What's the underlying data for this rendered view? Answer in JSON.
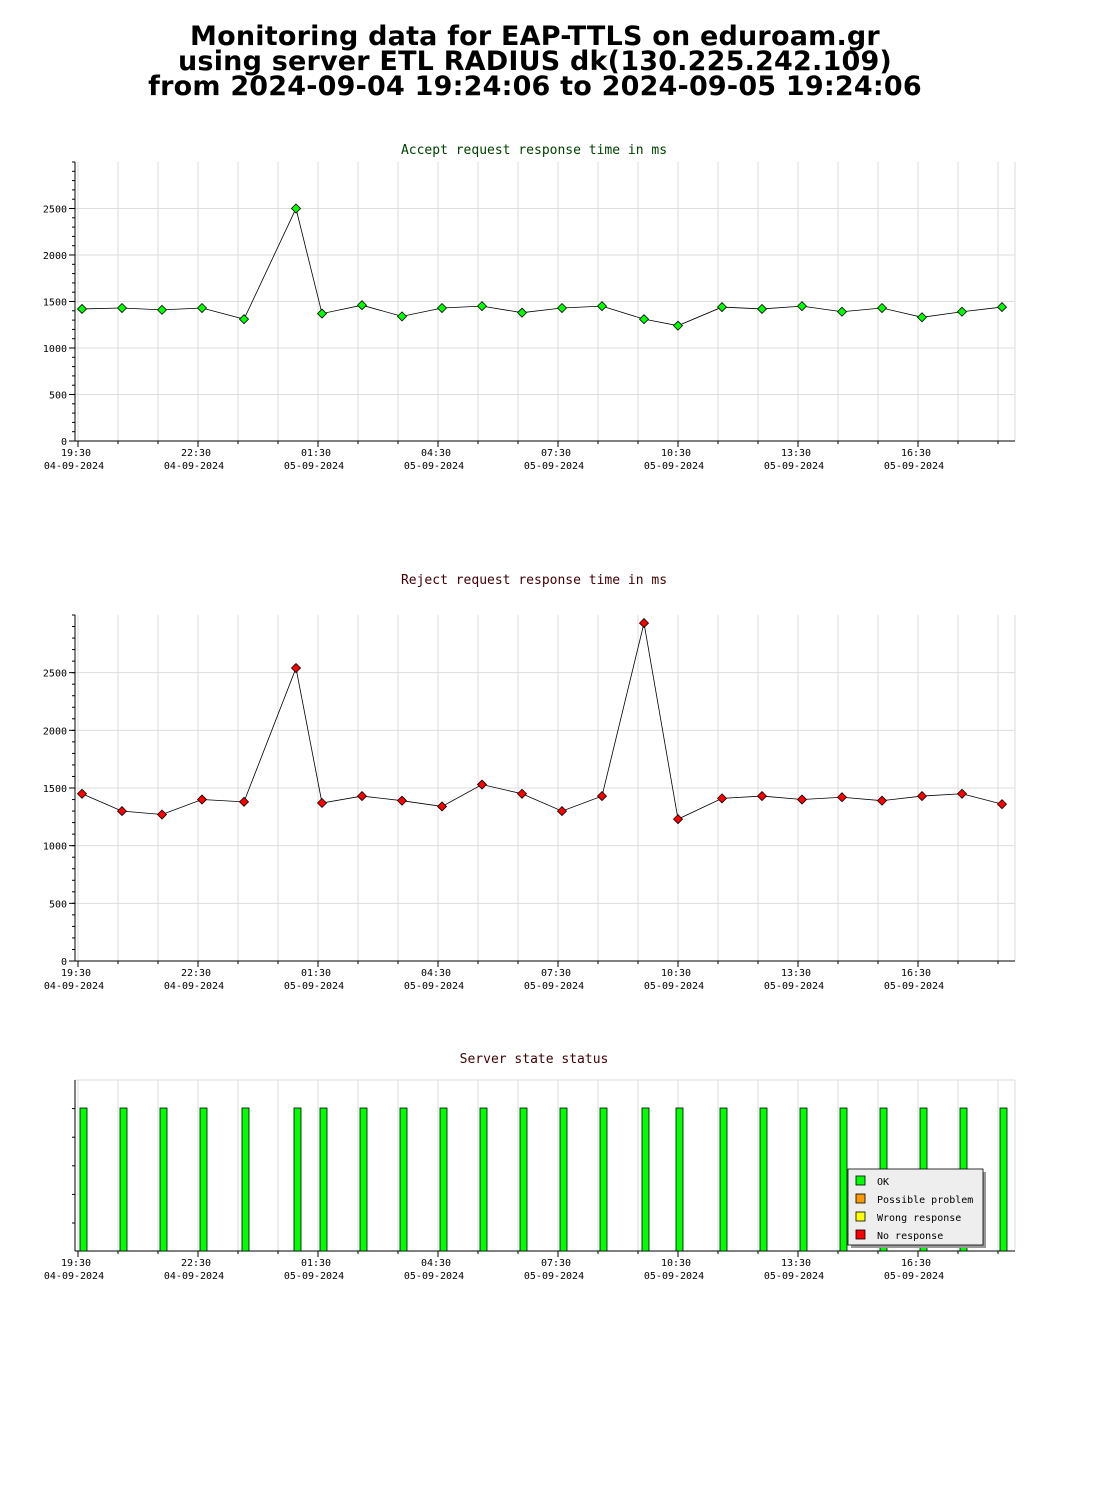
{
  "title": {
    "line1": "Monitoring data for EAP-TTLS on eduroam.gr",
    "line2": "using server ETL RADIUS dk(130.225.242.109)",
    "line3": "from 2024-09-04 19:24:06 to 2024-09-05 19:24:06"
  },
  "colors": {
    "accept_series": "#00ff00",
    "reject_series": "#ff0000",
    "accept_title": "#004000",
    "reject_title": "#400000",
    "status_title": "#400000",
    "grid": "#dddddd"
  },
  "x_axis_ticks": [
    {
      "time": "19:30",
      "date": "04-09-2024"
    },
    {
      "time": "22:30",
      "date": "04-09-2024"
    },
    {
      "time": "01:30",
      "date": "05-09-2024"
    },
    {
      "time": "04:30",
      "date": "05-09-2024"
    },
    {
      "time": "07:30",
      "date": "05-09-2024"
    },
    {
      "time": "10:30",
      "date": "05-09-2024"
    },
    {
      "time": "13:30",
      "date": "05-09-2024"
    },
    {
      "time": "16:30",
      "date": "05-09-2024"
    }
  ],
  "chart_data": [
    {
      "type": "line",
      "title": "Accept request response time in ms",
      "xlabel": "",
      "ylabel": "",
      "ylim": [
        0,
        3000
      ],
      "yticks": [
        0,
        500,
        1000,
        1500,
        2000,
        2500
      ],
      "x_hours": [
        0.1,
        1.1,
        2.1,
        3.1,
        4.15,
        5.45,
        6.1,
        7.1,
        8.1,
        9.1,
        10.1,
        11.1,
        12.1,
        13.1,
        14.15,
        15.0,
        16.1,
        17.1,
        18.1,
        19.1,
        20.1,
        21.1,
        22.1,
        23.1
      ],
      "values": [
        1420,
        1430,
        1410,
        1430,
        1310,
        2500,
        1370,
        1460,
        1340,
        1430,
        1450,
        1380,
        1430,
        1450,
        1310,
        1240,
        1440,
        1420,
        1450,
        1390,
        1430,
        1330,
        1390,
        1440
      ],
      "grid": true
    },
    {
      "type": "line",
      "title": "Reject request response time in ms",
      "xlabel": "",
      "ylabel": "",
      "ylim": [
        0,
        3000
      ],
      "yticks": [
        0,
        500,
        1000,
        1500,
        2000,
        2500
      ],
      "x_hours": [
        0.1,
        1.1,
        2.1,
        3.1,
        4.15,
        5.45,
        6.1,
        7.1,
        8.1,
        9.1,
        10.1,
        11.1,
        12.1,
        13.1,
        14.15,
        15.0,
        16.1,
        17.1,
        18.1,
        19.1,
        20.1,
        21.1,
        22.1,
        23.1
      ],
      "values": [
        1450,
        1300,
        1270,
        1400,
        1380,
        2540,
        1370,
        1430,
        1390,
        1340,
        1530,
        1450,
        1300,
        1430,
        2930,
        1230,
        1410,
        1430,
        1400,
        1420,
        1390,
        1430,
        1450,
        1360
      ],
      "grid": true
    },
    {
      "type": "bar",
      "title": "Server state status",
      "x_hours": [
        0.1,
        1.1,
        2.1,
        3.1,
        4.15,
        5.45,
        6.1,
        7.1,
        8.1,
        9.1,
        10.1,
        11.1,
        12.1,
        13.1,
        14.15,
        15.0,
        16.1,
        17.1,
        18.1,
        19.1,
        20.1,
        21.1,
        22.1,
        23.1
      ],
      "states": [
        "OK",
        "OK",
        "OK",
        "OK",
        "OK",
        "OK",
        "OK",
        "OK",
        "OK",
        "OK",
        "OK",
        "OK",
        "OK",
        "OK",
        "OK",
        "OK",
        "OK",
        "OK",
        "OK",
        "OK",
        "OK",
        "OK",
        "OK",
        "OK"
      ],
      "legend_position": "bottom-right",
      "legend": [
        {
          "label": "OK",
          "color": "#00ff00"
        },
        {
          "label": "Possible problem",
          "color": "#ff9900"
        },
        {
          "label": "Wrong response",
          "color": "#ffff00"
        },
        {
          "label": "No response",
          "color": "#ff0000"
        }
      ],
      "grid": true
    }
  ]
}
